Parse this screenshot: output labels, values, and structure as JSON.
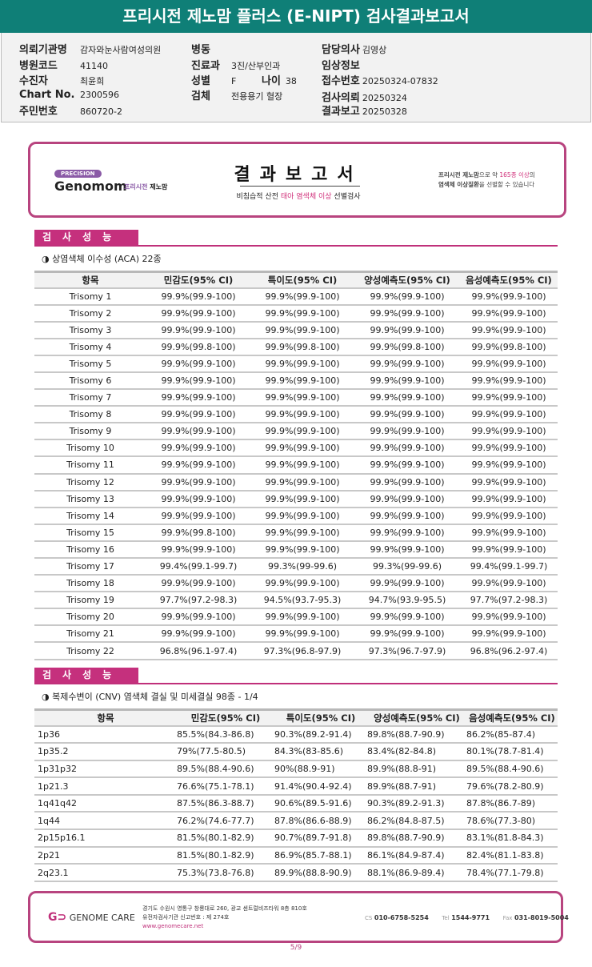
{
  "title": "프리시전 제노맘 플러스 (E-NIPT) 검사결과보고서",
  "info": {
    "org_label": "의뢰기관명",
    "org": "감자와눈사람여성의원",
    "code_label": "병원코드",
    "code": "41140",
    "patient_label": "수진자",
    "patient": "최윤희",
    "chart_label": "Chart No.",
    "chart": "2300596",
    "rrn_label": "주민번호",
    "rrn": "860720-2",
    "ward_label": "병동",
    "ward": "",
    "dept_label": "진료과",
    "dept": "3진/산부인과",
    "sex_label": "성별",
    "sex": "F",
    "age_label": "나이",
    "age": "38",
    "specimen_label": "검체",
    "specimen": "전용용기 혈장",
    "doctor_label": "담당의사",
    "doctor": "김영상",
    "clinical_label": "임상정보",
    "clinical": "",
    "accession_label": "접수번호",
    "accession": "20250324-07832",
    "request_label": "검사의뢰",
    "request": "20250324",
    "report_label": "결과보고",
    "report": "20250328"
  },
  "banner": {
    "pill": "PRECISION",
    "brand": "Genomom",
    "brand_sub1": "프리시전",
    "brand_sub2": "제노맘",
    "title": "결과보고서",
    "sub_pre": "비침습적 산전 ",
    "sub_hl": "태아 염색체 이상",
    "sub_post": " 선별검사",
    "right1a": "프리시전 제노맘",
    "right1b": "으로 약 ",
    "right1c": "165종 이상",
    "right1d": "의",
    "right2a": "염색체 이상질환",
    "right2b": "을 선별할 수 있습니다"
  },
  "section1": {
    "header": "검사성능",
    "subtitle": "◑ 상염색체 이수성 (ACA) 22종",
    "columns": [
      "항목",
      "민감도(95% CI)",
      "특이도(95% CI)",
      "양성예측도(95% CI)",
      "음성예측도(95% CI)"
    ],
    "rows": [
      [
        "Trisomy 1",
        "99.9%(99.9-100)",
        "99.9%(99.9-100)",
        "99.9%(99.9-100)",
        "99.9%(99.9-100)"
      ],
      [
        "Trisomy 2",
        "99.9%(99.9-100)",
        "99.9%(99.9-100)",
        "99.9%(99.9-100)",
        "99.9%(99.9-100)"
      ],
      [
        "Trisomy 3",
        "99.9%(99.9-100)",
        "99.9%(99.9-100)",
        "99.9%(99.9-100)",
        "99.9%(99.9-100)"
      ],
      [
        "Trisomy 4",
        "99.9%(99.8-100)",
        "99.9%(99.8-100)",
        "99.9%(99.8-100)",
        "99.9%(99.8-100)"
      ],
      [
        "Trisomy 5",
        "99.9%(99.9-100)",
        "99.9%(99.9-100)",
        "99.9%(99.9-100)",
        "99.9%(99.9-100)"
      ],
      [
        "Trisomy 6",
        "99.9%(99.9-100)",
        "99.9%(99.9-100)",
        "99.9%(99.9-100)",
        "99.9%(99.9-100)"
      ],
      [
        "Trisomy 7",
        "99.9%(99.9-100)",
        "99.9%(99.9-100)",
        "99.9%(99.9-100)",
        "99.9%(99.9-100)"
      ],
      [
        "Trisomy 8",
        "99.9%(99.9-100)",
        "99.9%(99.9-100)",
        "99.9%(99.9-100)",
        "99.9%(99.9-100)"
      ],
      [
        "Trisomy 9",
        "99.9%(99.9-100)",
        "99.9%(99.9-100)",
        "99.9%(99.9-100)",
        "99.9%(99.9-100)"
      ],
      [
        "Trisomy 10",
        "99.9%(99.9-100)",
        "99.9%(99.9-100)",
        "99.9%(99.9-100)",
        "99.9%(99.9-100)"
      ],
      [
        "Trisomy 11",
        "99.9%(99.9-100)",
        "99.9%(99.9-100)",
        "99.9%(99.9-100)",
        "99.9%(99.9-100)"
      ],
      [
        "Trisomy 12",
        "99.9%(99.9-100)",
        "99.9%(99.9-100)",
        "99.9%(99.9-100)",
        "99.9%(99.9-100)"
      ],
      [
        "Trisomy 13",
        "99.9%(99.9-100)",
        "99.9%(99.9-100)",
        "99.9%(99.9-100)",
        "99.9%(99.9-100)"
      ],
      [
        "Trisomy 14",
        "99.9%(99.9-100)",
        "99.9%(99.9-100)",
        "99.9%(99.9-100)",
        "99.9%(99.9-100)"
      ],
      [
        "Trisomy 15",
        "99.9%(99.8-100)",
        "99.9%(99.9-100)",
        "99.9%(99.9-100)",
        "99.9%(99.9-100)"
      ],
      [
        "Trisomy 16",
        "99.9%(99.9-100)",
        "99.9%(99.9-100)",
        "99.9%(99.9-100)",
        "99.9%(99.9-100)"
      ],
      [
        "Trisomy 17",
        "99.4%(99.1-99.7)",
        "99.3%(99-99.6)",
        "99.3%(99-99.6)",
        "99.4%(99.1-99.7)"
      ],
      [
        "Trisomy 18",
        "99.9%(99.9-100)",
        "99.9%(99.9-100)",
        "99.9%(99.9-100)",
        "99.9%(99.9-100)"
      ],
      [
        "Trisomy 19",
        "97.7%(97.2-98.3)",
        "94.5%(93.7-95.3)",
        "94.7%(93.9-95.5)",
        "97.7%(97.2-98.3)"
      ],
      [
        "Trisomy 20",
        "99.9%(99.9-100)",
        "99.9%(99.9-100)",
        "99.9%(99.9-100)",
        "99.9%(99.9-100)"
      ],
      [
        "Trisomy 21",
        "99.9%(99.9-100)",
        "99.9%(99.9-100)",
        "99.9%(99.9-100)",
        "99.9%(99.9-100)"
      ],
      [
        "Trisomy 22",
        "96.8%(96.1-97.4)",
        "97.3%(96.8-97.9)",
        "97.3%(96.7-97.9)",
        "96.8%(96.2-97.4)"
      ]
    ]
  },
  "section2": {
    "header": "검사성능",
    "subtitle": "◑ 복제수변이 (CNV) 염색체 결실 및 미세결실 98종 - 1/4",
    "columns": [
      "항목",
      "민감도(95% CI)",
      "특이도(95% CI)",
      "양성예측도(95% CI)",
      "음성예측도(95% CI)"
    ],
    "rows": [
      [
        "1p36",
        "85.5%(84.3-86.8)",
        "90.3%(89.2-91.4)",
        "89.8%(88.7-90.9)",
        "86.2%(85-87.4)"
      ],
      [
        "1p35.2",
        "79%(77.5-80.5)",
        "84.3%(83-85.6)",
        "83.4%(82-84.8)",
        "80.1%(78.7-81.4)"
      ],
      [
        "1p31p32",
        "89.5%(88.4-90.6)",
        "90%(88.9-91)",
        "89.9%(88.8-91)",
        "89.5%(88.4-90.6)"
      ],
      [
        "1p21.3",
        "76.6%(75.1-78.1)",
        "91.4%(90.4-92.4)",
        "89.9%(88.7-91)",
        "79.6%(78.2-80.9)"
      ],
      [
        "1q41q42",
        "87.5%(86.3-88.7)",
        "90.6%(89.5-91.6)",
        "90.3%(89.2-91.3)",
        "87.8%(86.7-89)"
      ],
      [
        "1q44",
        "76.2%(74.6-77.7)",
        "87.8%(86.6-88.9)",
        "86.2%(84.8-87.5)",
        "78.6%(77.3-80)"
      ],
      [
        "2p15p16.1",
        "81.5%(80.1-82.9)",
        "90.7%(89.7-91.8)",
        "89.8%(88.7-90.9)",
        "83.1%(81.8-84.3)"
      ],
      [
        "2p21",
        "81.5%(80.1-82.9)",
        "86.9%(85.7-88.1)",
        "86.1%(84.9-87.4)",
        "82.4%(81.1-83.8)"
      ],
      [
        "2q23.1",
        "75.3%(73.8-76.8)",
        "89.9%(88.8-90.9)",
        "88.1%(86.9-89.4)",
        "78.4%(77.1-79.8)"
      ]
    ]
  },
  "footer": {
    "logo": "GENOME CARE",
    "addr1": "경기도 수원시 영통구 창룡대로 260, 광교 센트럴비즈타워 8층 810호",
    "addr2": "유전자검사기관 신고번호 : 제 274호",
    "url": "www.genomecare.net",
    "cs_label": "CS",
    "cs": "010-6758-5254",
    "tel_label": "Tel",
    "tel": "1544-9771",
    "fax_label": "Fax",
    "fax": "031-8019-5004"
  },
  "page": "5/9",
  "colors": {
    "title_bar": "#0f7f77",
    "accent": "#c5307d"
  }
}
